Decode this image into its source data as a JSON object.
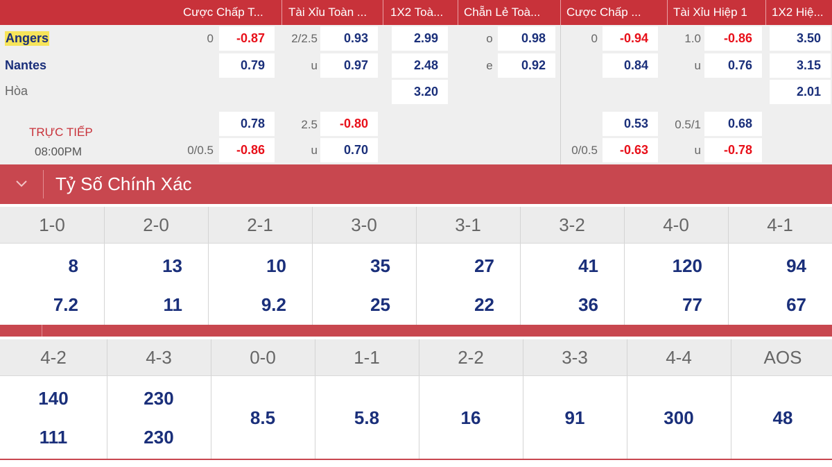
{
  "header": {
    "columns": [
      "Cược Chấp T...",
      "Tài Xỉu Toàn ...",
      "1X2 Toà...",
      "Chẵn Lẻ Toà...",
      "Cược Chấp ...",
      "Tài Xỉu Hiệp 1",
      "1X2 Hiệ..."
    ]
  },
  "match": {
    "home": "Angers",
    "away": "Nantes",
    "draw": "Hòa",
    "live_label": "TRỰC TIẾP",
    "time": "08:00PM"
  },
  "odds": {
    "ft_handicap": {
      "line1": "0",
      "home1": "-0.87",
      "away1": "0.79",
      "home2": "0.78",
      "line2": "0/0.5",
      "away2": "-0.86"
    },
    "ft_ou": {
      "line1": "2/2.5",
      "over1": "0.93",
      "u1": "u",
      "under1": "0.97",
      "line2": "2.5",
      "over2": "-0.80",
      "u2": "u",
      "under2": "0.70"
    },
    "ft_1x2": {
      "home": "2.99",
      "away": "2.48",
      "draw": "3.20"
    },
    "ft_oe": {
      "o": "o",
      "odd": "0.98",
      "e": "e",
      "even": "0.92"
    },
    "h1_handicap": {
      "line1": "0",
      "home1": "-0.94",
      "away1": "0.84",
      "home2": "0.53",
      "line2": "0/0.5",
      "away2": "-0.63"
    },
    "h1_ou": {
      "line1": "1.0",
      "over1": "-0.86",
      "u1": "u",
      "under1": "0.76",
      "line2": "0.5/1",
      "over2": "0.68",
      "u2": "u",
      "under2": "-0.78"
    },
    "h1_1x2": {
      "home": "3.50",
      "away": "3.15",
      "draw": "2.01"
    }
  },
  "correct_score": {
    "title": "Tỷ Số Chính Xác",
    "table1": [
      {
        "score": "1-0",
        "home": "8",
        "away": "7.2"
      },
      {
        "score": "2-0",
        "home": "13",
        "away": "11"
      },
      {
        "score": "2-1",
        "home": "10",
        "away": "9.2"
      },
      {
        "score": "3-0",
        "home": "35",
        "away": "25"
      },
      {
        "score": "3-1",
        "home": "27",
        "away": "22"
      },
      {
        "score": "3-2",
        "home": "41",
        "away": "36"
      },
      {
        "score": "4-0",
        "home": "120",
        "away": "77"
      },
      {
        "score": "4-1",
        "home": "94",
        "away": "67"
      }
    ],
    "table2": [
      {
        "score": "4-2",
        "home": "140",
        "away": "111"
      },
      {
        "score": "4-3",
        "home": "230",
        "away": "230"
      },
      {
        "score": "0-0",
        "value": "8.5"
      },
      {
        "score": "1-1",
        "value": "5.8"
      },
      {
        "score": "2-2",
        "value": "16"
      },
      {
        "score": "3-3",
        "value": "91"
      },
      {
        "score": "4-4",
        "value": "300"
      },
      {
        "score": "AOS",
        "value": "48"
      }
    ]
  }
}
